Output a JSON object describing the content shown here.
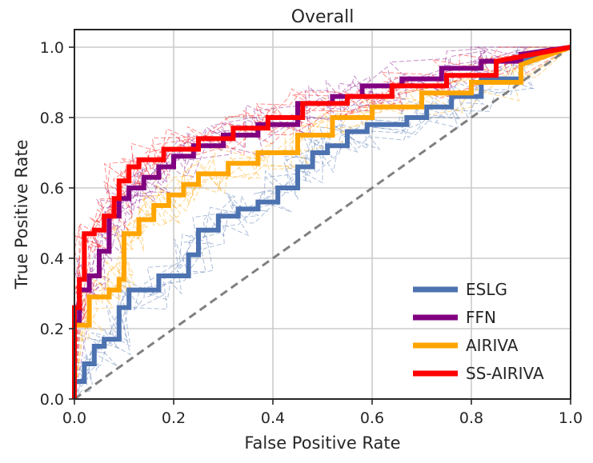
{
  "chart_data": {
    "type": "line",
    "title": "Overall",
    "xlabel": "False Positive Rate",
    "ylabel": "True Positive Rate",
    "xlim": [
      0,
      1
    ],
    "ylim": [
      0,
      1.05
    ],
    "xticks": [
      0.0,
      0.2,
      0.4,
      0.6,
      0.8,
      1.0
    ],
    "yticks": [
      0.0,
      0.2,
      0.4,
      0.6,
      0.8,
      1.0
    ],
    "xtick_labels": [
      "0.0",
      "0.2",
      "0.4",
      "0.6",
      "0.8",
      "1.0"
    ],
    "ytick_labels": [
      "0.0",
      "0.2",
      "0.4",
      "0.6",
      "0.8",
      "1.0"
    ],
    "grid": true,
    "legend_position": "bottom-right",
    "diagonal": {
      "x": [
        0,
        1
      ],
      "y": [
        0,
        1
      ],
      "color": "#808080",
      "style": "dashed"
    },
    "series": [
      {
        "name": "ESLG",
        "color": "#4c72b0",
        "x": [
          0,
          0,
          0.02,
          0.02,
          0.04,
          0.04,
          0.06,
          0.06,
          0.09,
          0.09,
          0.11,
          0.11,
          0.17,
          0.17,
          0.23,
          0.23,
          0.25,
          0.25,
          0.29,
          0.29,
          0.33,
          0.33,
          0.37,
          0.37,
          0.41,
          0.41,
          0.45,
          0.45,
          0.48,
          0.48,
          0.51,
          0.51,
          0.55,
          0.55,
          0.59,
          0.59,
          0.67,
          0.67,
          0.71,
          0.71,
          0.76,
          0.76,
          0.82,
          0.82,
          0.9,
          0.9,
          1.0
        ],
        "y": [
          0,
          0.05,
          0.05,
          0.1,
          0.1,
          0.15,
          0.15,
          0.17,
          0.17,
          0.26,
          0.26,
          0.31,
          0.31,
          0.35,
          0.35,
          0.41,
          0.41,
          0.48,
          0.48,
          0.52,
          0.52,
          0.54,
          0.54,
          0.56,
          0.56,
          0.6,
          0.6,
          0.66,
          0.66,
          0.7,
          0.7,
          0.72,
          0.72,
          0.76,
          0.76,
          0.78,
          0.78,
          0.8,
          0.8,
          0.83,
          0.83,
          0.86,
          0.86,
          0.91,
          0.91,
          0.96,
          1.0
        ]
      },
      {
        "name": "FFN",
        "color": "#800080",
        "x": [
          0,
          0,
          0.01,
          0.01,
          0.03,
          0.03,
          0.05,
          0.05,
          0.07,
          0.07,
          0.09,
          0.09,
          0.11,
          0.11,
          0.14,
          0.14,
          0.17,
          0.17,
          0.2,
          0.2,
          0.24,
          0.24,
          0.3,
          0.3,
          0.37,
          0.37,
          0.45,
          0.45,
          0.52,
          0.52,
          0.58,
          0.58,
          0.66,
          0.66,
          0.74,
          0.74,
          0.82,
          0.82,
          0.9,
          0.9,
          1.0
        ],
        "y": [
          0,
          0.22,
          0.22,
          0.31,
          0.31,
          0.35,
          0.35,
          0.42,
          0.42,
          0.52,
          0.52,
          0.57,
          0.57,
          0.6,
          0.6,
          0.63,
          0.63,
          0.66,
          0.66,
          0.69,
          0.69,
          0.72,
          0.72,
          0.75,
          0.75,
          0.78,
          0.78,
          0.84,
          0.84,
          0.86,
          0.86,
          0.89,
          0.89,
          0.91,
          0.91,
          0.94,
          0.94,
          0.96,
          0.96,
          0.98,
          1.0
        ]
      },
      {
        "name": "AIRIVA",
        "color": "#ffa500",
        "x": [
          0,
          0,
          0.03,
          0.03,
          0.07,
          0.07,
          0.09,
          0.09,
          0.1,
          0.1,
          0.13,
          0.13,
          0.16,
          0.16,
          0.19,
          0.19,
          0.22,
          0.22,
          0.25,
          0.25,
          0.31,
          0.31,
          0.37,
          0.37,
          0.45,
          0.45,
          0.52,
          0.52,
          0.6,
          0.6,
          0.7,
          0.7,
          0.8,
          0.8,
          0.9,
          0.9,
          1.0
        ],
        "y": [
          0,
          0.21,
          0.21,
          0.29,
          0.29,
          0.31,
          0.31,
          0.34,
          0.34,
          0.47,
          0.47,
          0.51,
          0.51,
          0.55,
          0.55,
          0.58,
          0.58,
          0.61,
          0.61,
          0.64,
          0.64,
          0.67,
          0.67,
          0.7,
          0.7,
          0.75,
          0.75,
          0.8,
          0.8,
          0.83,
          0.83,
          0.87,
          0.87,
          0.9,
          0.9,
          0.95,
          1.0
        ]
      },
      {
        "name": "SS-AIRIVA",
        "color": "#ff0000",
        "x": [
          0,
          0,
          0.01,
          0.01,
          0.02,
          0.02,
          0.04,
          0.04,
          0.06,
          0.06,
          0.08,
          0.08,
          0.09,
          0.09,
          0.11,
          0.11,
          0.13,
          0.13,
          0.18,
          0.18,
          0.25,
          0.25,
          0.32,
          0.32,
          0.39,
          0.39,
          0.46,
          0.46,
          0.55,
          0.55,
          0.64,
          0.64,
          0.75,
          0.75,
          0.85,
          0.85,
          1.0
        ],
        "y": [
          0,
          0.26,
          0.26,
          0.34,
          0.34,
          0.47,
          0.47,
          0.48,
          0.48,
          0.52,
          0.52,
          0.57,
          0.57,
          0.62,
          0.62,
          0.66,
          0.66,
          0.68,
          0.68,
          0.71,
          0.71,
          0.74,
          0.74,
          0.77,
          0.77,
          0.8,
          0.8,
          0.84,
          0.84,
          0.86,
          0.86,
          0.89,
          0.89,
          0.92,
          0.92,
          0.96,
          1.0
        ]
      }
    ]
  }
}
